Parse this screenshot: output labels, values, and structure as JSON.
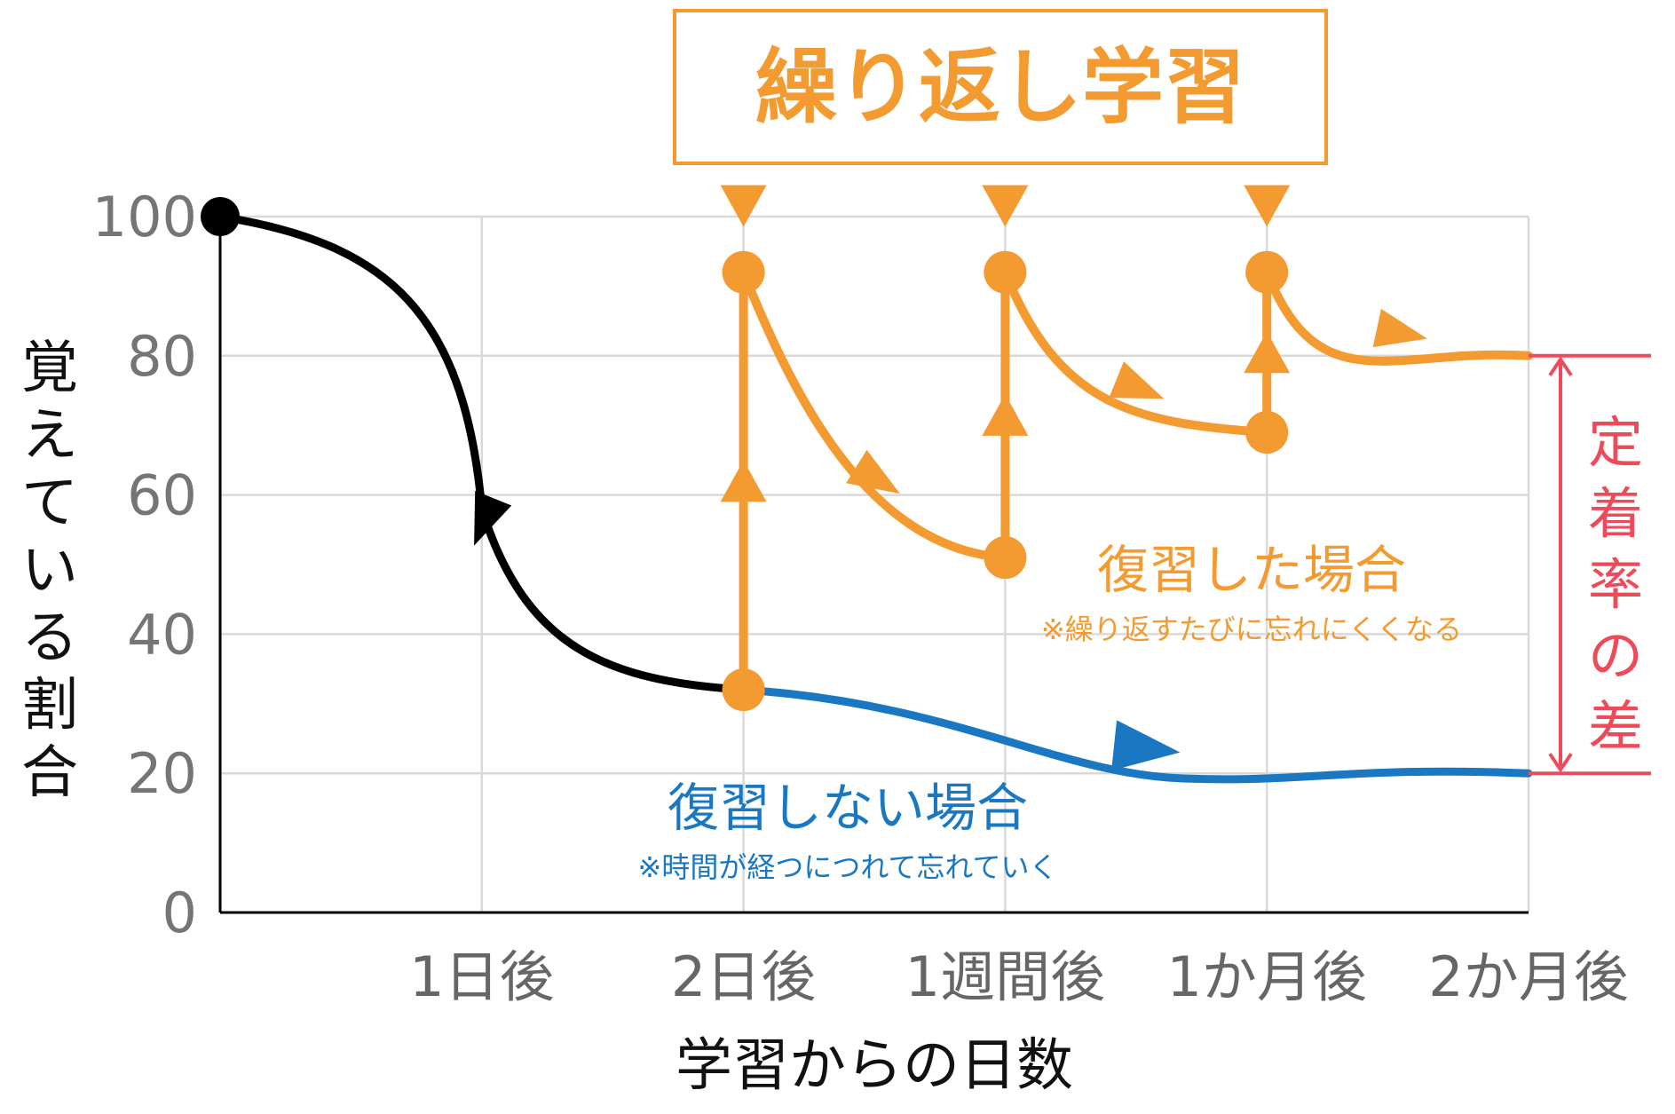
{
  "colors": {
    "review": "#F39A31",
    "no_review": "#1A78C2",
    "initial": "#000000",
    "difference": "#EE4B5A",
    "grid": "#D9D9D9",
    "axis": "#000000",
    "tick": "#757575"
  },
  "chart_data": {
    "type": "line",
    "xlabel": "学習からの日数",
    "ylabel": "覚えている割合",
    "ylim": [
      0,
      100
    ],
    "yticks": [
      0,
      20,
      40,
      60,
      80,
      100
    ],
    "categories": [
      "1日後",
      "2日後",
      "1週間後",
      "1か月後",
      "2か月後"
    ],
    "grid": true,
    "series": [
      {
        "key": "initial",
        "points": [
          [
            0,
            100
          ],
          [
            1,
            58
          ],
          [
            2,
            32
          ]
        ]
      },
      {
        "key": "no_review",
        "name": "復習しない場合",
        "note": "※時間が経つにつれて忘れていく",
        "points": [
          [
            2,
            32
          ],
          [
            3,
            25
          ],
          [
            4,
            22
          ],
          [
            5,
            20
          ]
        ]
      },
      {
        "key": "review",
        "name": "復習した場合",
        "note": "※繰り返すたびに忘れにくくなる",
        "review_points": [
          [
            2,
            32
          ],
          [
            3,
            51
          ],
          [
            4,
            69
          ]
        ],
        "peak_points": [
          [
            2,
            92
          ],
          [
            3,
            92
          ],
          [
            4,
            92
          ]
        ],
        "end_point": [
          5,
          80
        ]
      }
    ],
    "banner": "繰り返し学習",
    "difference": {
      "label": "定着率の差",
      "from": 20,
      "to": 80
    }
  }
}
